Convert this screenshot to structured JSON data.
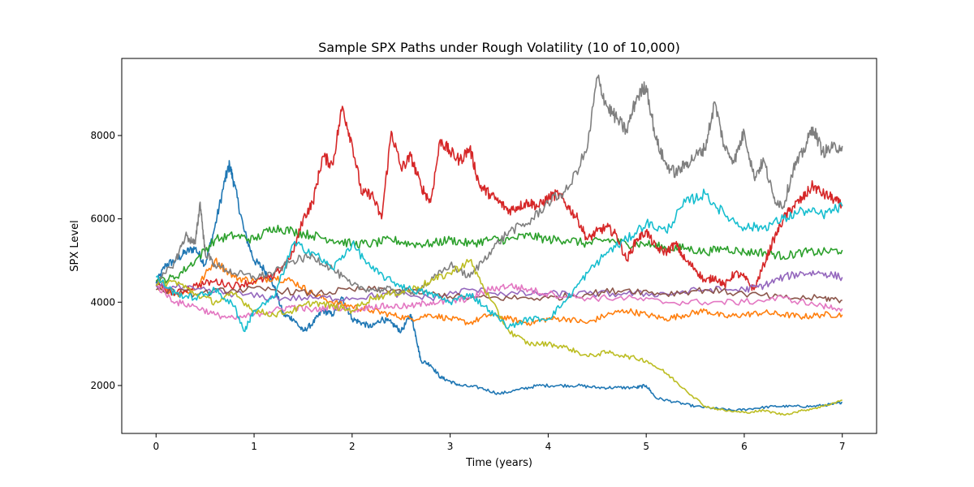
{
  "chart_data": {
    "type": "line",
    "title": "Sample SPX Paths under Rough Volatility (10 of 10,000)",
    "xlabel": "Time (years)",
    "ylabel": "SPX Level",
    "xlim": [
      -0.35,
      7.35
    ],
    "ylim": [
      850,
      9850
    ],
    "xticks": [
      0,
      1,
      2,
      3,
      4,
      5,
      6,
      7
    ],
    "yticks": [
      2000,
      4000,
      6000,
      8000
    ],
    "grid": false,
    "legend": "none",
    "series": [
      {
        "color": "#1f77b4",
        "x": [
          0,
          0.1,
          0.2,
          0.3,
          0.4,
          0.5,
          0.6,
          0.7,
          0.75,
          0.8,
          0.9,
          1.0,
          1.1,
          1.2,
          1.3,
          1.4,
          1.5,
          1.6,
          1.7,
          1.8,
          1.9,
          2.0,
          2.1,
          2.2,
          2.3,
          2.4,
          2.5,
          2.6,
          2.65,
          2.7,
          2.8,
          2.9,
          3.0,
          3.1,
          3.3,
          3.5,
          3.7,
          3.9,
          4.1,
          4.3,
          4.5,
          4.7,
          4.9,
          5.0,
          5.1,
          5.3,
          5.5,
          5.7,
          5.9,
          6.1,
          6.3,
          6.5,
          6.7,
          6.9,
          7.0
        ],
        "values": [
          4450,
          4900,
          5000,
          5200,
          5300,
          4900,
          5800,
          6900,
          7300,
          6800,
          5700,
          5000,
          4800,
          4400,
          3700,
          3600,
          3300,
          3500,
          3800,
          3700,
          4100,
          3600,
          3500,
          3400,
          3600,
          3500,
          3300,
          3700,
          3200,
          2600,
          2500,
          2200,
          2100,
          2000,
          1950,
          1800,
          1900,
          2000,
          2000,
          2000,
          1950,
          1950,
          1950,
          2000,
          1700,
          1600,
          1500,
          1450,
          1400,
          1450,
          1500,
          1500,
          1500,
          1550,
          1600
        ]
      },
      {
        "color": "#ff7f0e",
        "x": [
          0,
          0.2,
          0.4,
          0.6,
          0.8,
          1.0,
          1.2,
          1.4,
          1.6,
          1.8,
          2.0,
          2.2,
          2.4,
          2.6,
          2.8,
          3.0,
          3.2,
          3.4,
          3.6,
          3.8,
          4.0,
          4.2,
          4.4,
          4.6,
          4.8,
          5.0,
          5.2,
          5.4,
          5.6,
          5.8,
          6.0,
          6.2,
          6.4,
          6.6,
          6.8,
          7.0
        ],
        "values": [
          4400,
          4200,
          4300,
          5000,
          4600,
          4500,
          4600,
          4500,
          4200,
          4000,
          3900,
          3800,
          3700,
          3600,
          3700,
          3600,
          3500,
          3700,
          3600,
          3500,
          3600,
          3600,
          3500,
          3700,
          3800,
          3700,
          3600,
          3700,
          3800,
          3650,
          3700,
          3750,
          3700,
          3650,
          3700,
          3700
        ]
      },
      {
        "color": "#2ca02c",
        "x": [
          0,
          0.2,
          0.4,
          0.6,
          0.8,
          1.0,
          1.2,
          1.4,
          1.6,
          1.8,
          2.0,
          2.2,
          2.4,
          2.6,
          2.8,
          3.0,
          3.2,
          3.4,
          3.6,
          3.8,
          4.0,
          4.2,
          4.4,
          4.6,
          4.8,
          5.0,
          5.2,
          5.4,
          5.6,
          5.8,
          6.0,
          6.2,
          6.4,
          6.6,
          6.8,
          7.0
        ],
        "values": [
          4500,
          4600,
          5000,
          5500,
          5600,
          5500,
          5800,
          5700,
          5600,
          5500,
          5400,
          5400,
          5500,
          5400,
          5400,
          5500,
          5400,
          5500,
          5500,
          5600,
          5500,
          5500,
          5400,
          5500,
          5400,
          5400,
          5300,
          5300,
          5200,
          5300,
          5200,
          5200,
          5100,
          5200,
          5200,
          5250
        ]
      },
      {
        "color": "#d62728",
        "x": [
          0,
          0.2,
          0.4,
          0.6,
          0.8,
          1.0,
          1.2,
          1.4,
          1.5,
          1.6,
          1.7,
          1.8,
          1.9,
          2.0,
          2.1,
          2.2,
          2.3,
          2.4,
          2.5,
          2.6,
          2.7,
          2.8,
          2.9,
          3.0,
          3.1,
          3.2,
          3.3,
          3.4,
          3.5,
          3.6,
          3.7,
          3.8,
          3.9,
          4.0,
          4.1,
          4.2,
          4.3,
          4.4,
          4.5,
          4.6,
          4.7,
          4.8,
          4.9,
          5.0,
          5.1,
          5.2,
          5.3,
          5.4,
          5.5,
          5.6,
          5.7,
          5.8,
          5.9,
          6.0,
          6.1,
          6.2,
          6.3,
          6.4,
          6.5,
          6.6,
          6.7,
          6.8,
          6.9,
          7.0
        ],
        "values": [
          4400,
          4200,
          4400,
          4500,
          4400,
          4500,
          4600,
          5200,
          6000,
          6400,
          7500,
          7300,
          8700,
          7800,
          6600,
          6600,
          6000,
          8100,
          7200,
          7500,
          6800,
          6400,
          7900,
          7600,
          7400,
          7700,
          6800,
          6600,
          6400,
          6200,
          6300,
          6400,
          6300,
          6500,
          6600,
          6300,
          6000,
          5500,
          5700,
          5800,
          5600,
          5000,
          5500,
          5700,
          5300,
          5200,
          5400,
          5000,
          4800,
          4500,
          4600,
          4400,
          4700,
          4600,
          4300,
          4900,
          5500,
          6000,
          6300,
          6500,
          6800,
          6600,
          6500,
          6300
        ]
      },
      {
        "color": "#9467bd",
        "x": [
          0,
          0.4,
          0.8,
          1.2,
          1.6,
          2.0,
          2.4,
          2.8,
          3.2,
          3.6,
          4.0,
          4.4,
          4.8,
          5.2,
          5.6,
          6.0,
          6.2,
          6.4,
          6.6,
          6.8,
          7.0
        ],
        "values": [
          4400,
          4300,
          4200,
          4100,
          4100,
          4100,
          4200,
          4100,
          4300,
          4200,
          4200,
          4200,
          4200,
          4200,
          4300,
          4300,
          4400,
          4600,
          4700,
          4700,
          4600
        ]
      },
      {
        "color": "#8c564b",
        "x": [
          0,
          0.4,
          0.8,
          1.2,
          1.6,
          2.0,
          2.4,
          2.8,
          3.2,
          3.6,
          4.0,
          4.4,
          4.8,
          5.2,
          5.6,
          6.0,
          6.4,
          6.8,
          7.0
        ],
        "values": [
          4300,
          4200,
          4300,
          4300,
          4200,
          4300,
          4300,
          4200,
          4100,
          4100,
          4100,
          4200,
          4300,
          4200,
          4300,
          4200,
          4100,
          4100,
          4050
        ]
      },
      {
        "color": "#e377c2",
        "x": [
          0,
          0.2,
          0.4,
          0.6,
          0.8,
          1.0,
          1.2,
          1.4,
          1.6,
          1.8,
          2.0,
          2.2,
          2.4,
          2.6,
          2.8,
          3.0,
          3.2,
          3.4,
          3.6,
          3.8,
          4.0,
          4.4,
          4.8,
          5.2,
          5.6,
          6.0,
          6.4,
          6.8,
          7.0
        ],
        "values": [
          4400,
          4000,
          3900,
          3700,
          3600,
          3700,
          3800,
          3900,
          3800,
          3900,
          3800,
          3900,
          3900,
          3900,
          4000,
          4000,
          4100,
          4300,
          4400,
          4300,
          4200,
          4100,
          4100,
          4000,
          4000,
          4000,
          4100,
          3900,
          3850
        ]
      },
      {
        "color": "#7f7f7f",
        "x": [
          0,
          0.2,
          0.3,
          0.4,
          0.45,
          0.5,
          0.6,
          0.8,
          1.0,
          1.2,
          1.4,
          1.6,
          1.8,
          2.0,
          2.2,
          2.4,
          2.6,
          2.8,
          3.0,
          3.2,
          3.4,
          3.6,
          3.8,
          4.0,
          4.2,
          4.4,
          4.5,
          4.6,
          4.7,
          4.8,
          4.9,
          5.0,
          5.1,
          5.2,
          5.3,
          5.4,
          5.5,
          5.6,
          5.7,
          5.8,
          5.9,
          6.0,
          6.1,
          6.2,
          6.3,
          6.4,
          6.5,
          6.6,
          6.7,
          6.8,
          6.9,
          7.0
        ],
        "values": [
          4400,
          5000,
          5600,
          5400,
          6400,
          5200,
          4900,
          4700,
          4600,
          4700,
          5000,
          5100,
          4800,
          4400,
          4300,
          4300,
          4200,
          4500,
          4900,
          4600,
          5200,
          5700,
          5900,
          6400,
          6700,
          7700,
          9400,
          8700,
          8400,
          8100,
          8900,
          9200,
          7900,
          7300,
          7100,
          7300,
          7500,
          7700,
          8800,
          7700,
          7400,
          8100,
          7000,
          7400,
          6500,
          6300,
          7200,
          7600,
          8200,
          7600,
          7700,
          7750
        ]
      },
      {
        "color": "#bcbd22",
        "x": [
          0,
          0.2,
          0.4,
          0.6,
          0.8,
          1.0,
          1.2,
          1.4,
          1.6,
          1.8,
          2.0,
          2.2,
          2.4,
          2.6,
          2.8,
          3.0,
          3.2,
          3.4,
          3.6,
          3.8,
          4.0,
          4.2,
          4.4,
          4.6,
          4.8,
          5.0,
          5.2,
          5.4,
          5.6,
          5.8,
          6.0,
          6.2,
          6.4,
          6.6,
          6.8,
          7.0
        ],
        "values": [
          4400,
          4500,
          4200,
          4000,
          4200,
          3800,
          3700,
          3800,
          4000,
          3900,
          3800,
          4100,
          4200,
          4300,
          4500,
          4700,
          5000,
          4100,
          3300,
          3000,
          3000,
          2900,
          2700,
          2800,
          2700,
          2600,
          2300,
          1900,
          1500,
          1400,
          1350,
          1400,
          1300,
          1400,
          1500,
          1650
        ]
      },
      {
        "color": "#17becf",
        "x": [
          0,
          0.2,
          0.4,
          0.6,
          0.8,
          0.9,
          1.0,
          1.2,
          1.4,
          1.6,
          1.8,
          2.0,
          2.2,
          2.4,
          2.6,
          2.8,
          3.0,
          3.2,
          3.4,
          3.6,
          3.8,
          4.0,
          4.2,
          4.4,
          4.6,
          4.8,
          5.0,
          5.2,
          5.4,
          5.6,
          5.8,
          6.0,
          6.2,
          6.4,
          6.6,
          6.8,
          7.0
        ],
        "values": [
          4600,
          4200,
          4100,
          4300,
          3900,
          3300,
          3800,
          4100,
          5400,
          5200,
          4800,
          5400,
          4800,
          4500,
          4300,
          4200,
          4000,
          4200,
          3800,
          3400,
          3600,
          3600,
          4100,
          4700,
          5200,
          5500,
          5900,
          5700,
          6400,
          6600,
          6100,
          5800,
          5800,
          6000,
          6200,
          6100,
          6300
        ]
      }
    ]
  }
}
